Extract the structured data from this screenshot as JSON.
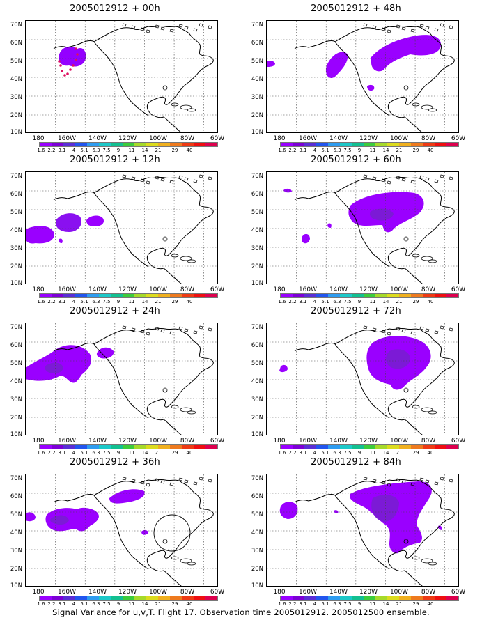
{
  "panels": [
    {
      "title": "2005012912  + 00h"
    },
    {
      "title": "2005012912  + 48h"
    },
    {
      "title": "2005012912  + 12h"
    },
    {
      "title": "2005012912  + 60h"
    },
    {
      "title": "2005012912  + 24h"
    },
    {
      "title": "2005012912  + 72h"
    },
    {
      "title": "2005012912  + 36h"
    },
    {
      "title": "2005012912  + 84h"
    }
  ],
  "axes": {
    "y_labels": [
      "70N",
      "60N",
      "50N",
      "40N",
      "30N",
      "20N",
      "10N"
    ],
    "x_labels": [
      "180",
      "160W",
      "140W",
      "120W",
      "100W",
      "80W",
      "60W"
    ]
  },
  "colorbar": {
    "colors": [
      "#9900ff",
      "#7c00d6",
      "#5a2ed6",
      "#2255ee",
      "#2e9cf0",
      "#1cc8c8",
      "#12c090",
      "#3ccc3c",
      "#a6da2a",
      "#dcdc1e",
      "#f0b01e",
      "#ee7a1e",
      "#ee3a14",
      "#ee0e10",
      "#dd004e"
    ],
    "labels": [
      "1.6",
      "2.2",
      "3.1",
      "4",
      "5.1",
      "6.3",
      "7.5",
      "9",
      "11",
      "14",
      "21",
      "29",
      "40"
    ]
  },
  "caption": "Signal Variance for u,v,T. Flight 17. Observation time 2005012912. 2005012500 ensemble."
}
